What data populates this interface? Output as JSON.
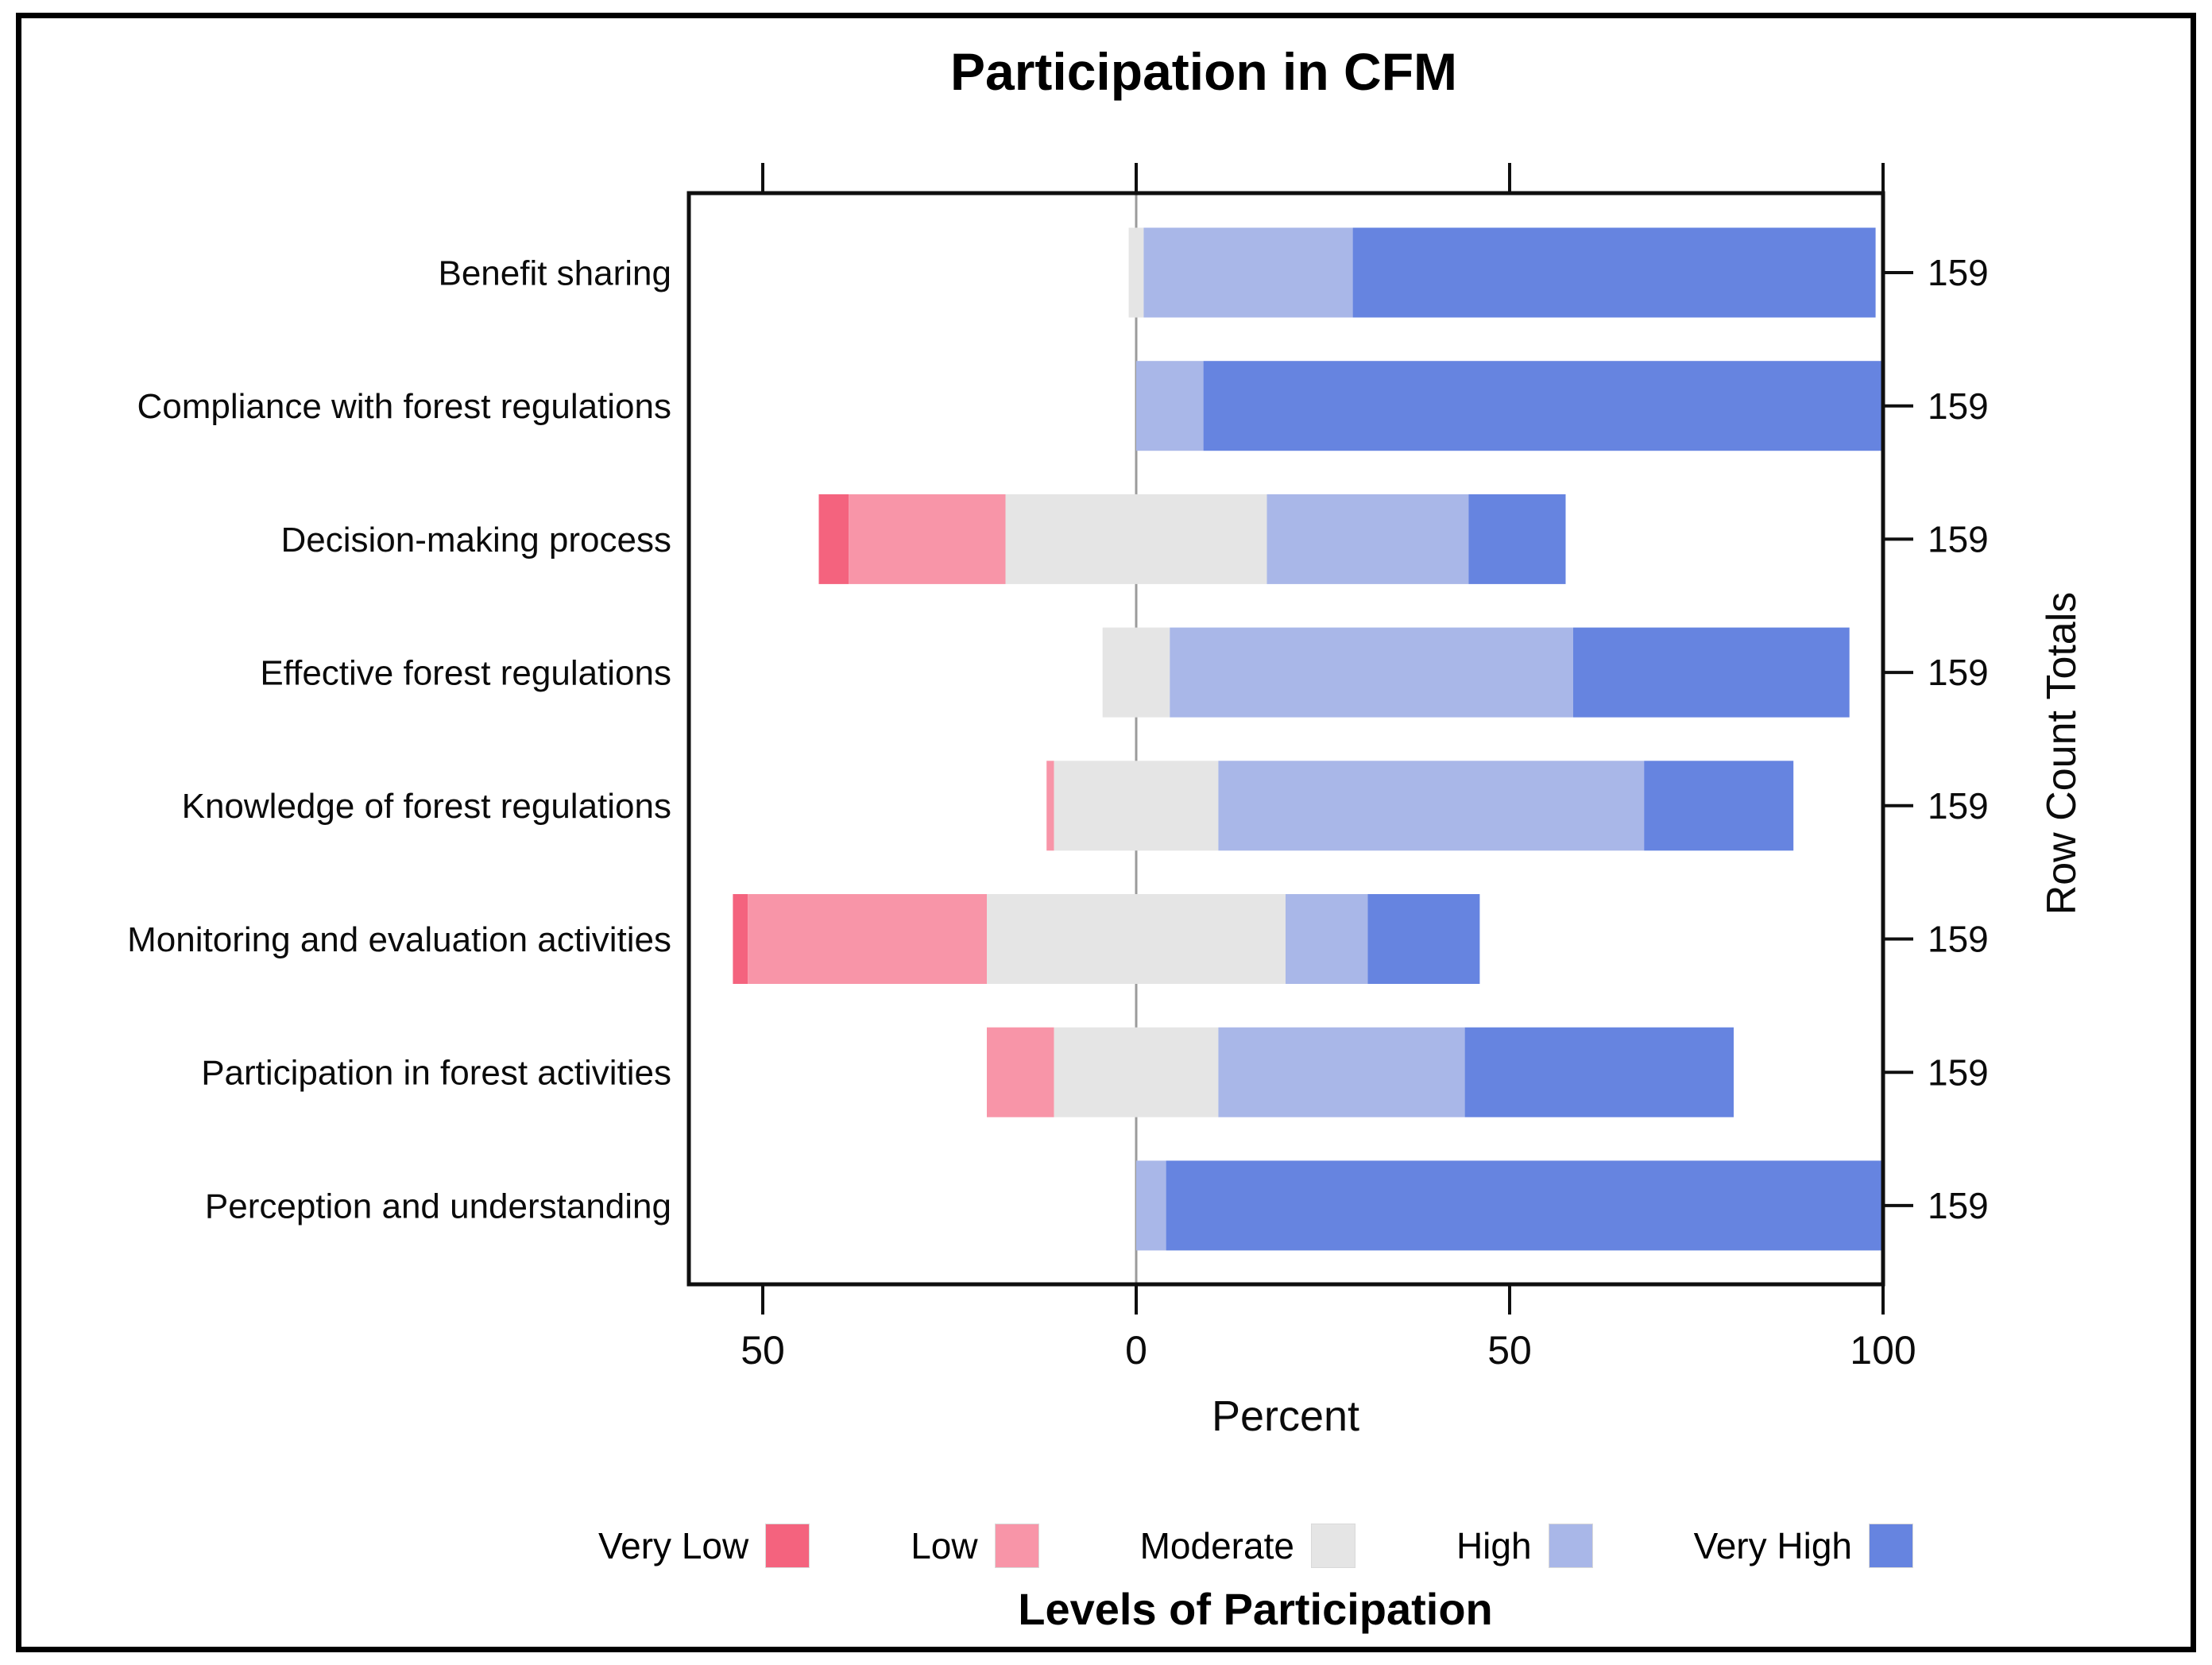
{
  "title": "Participation in CFM",
  "x_axis": {
    "label": "Percent",
    "ticks": [
      {
        "value": -50,
        "label": "50"
      },
      {
        "value": 0,
        "label": "0"
      },
      {
        "value": 50,
        "label": "50"
      },
      {
        "value": 100,
        "label": "100"
      }
    ]
  },
  "right_axis": {
    "label": "Row Count Totals"
  },
  "legend": {
    "title": "Levels of Participation",
    "items": [
      {
        "label": "Very Low",
        "color": "#F4637E"
      },
      {
        "label": "Low",
        "color": "#F895A8"
      },
      {
        "label": "Moderate",
        "color": "#E5E5E5"
      },
      {
        "label": "High",
        "color": "#A9B7E8"
      },
      {
        "label": "Very High",
        "color": "#6684E0"
      }
    ]
  },
  "colors": {
    "zero_line": "#9B9B9B",
    "frame": "#0f0f0f",
    "text": "#0b0b0b"
  },
  "chart_data": {
    "type": "bar",
    "subtype": "diverging_stacked_bar",
    "orientation": "horizontal",
    "title": "Participation in CFM",
    "xlabel": "Percent",
    "right_axis_label": "Row Count Totals",
    "legend_title": "Levels of Participation",
    "xlim": [
      -60,
      100
    ],
    "layout_note": "Moderate segment centered on zero; Very Low and Low extend left, High and Very High extend right",
    "categories": [
      "Benefit sharing",
      "Compliance with forest regulations",
      "Decision-making process",
      "Effective forest regulations",
      "Knowledge of forest regulations",
      "Monitoring and evaluation activities",
      "Participation in forest activities",
      "Perception and understanding"
    ],
    "series": [
      {
        "name": "Very Low",
        "values": [
          0,
          0,
          4,
          0,
          0,
          2,
          0,
          0
        ]
      },
      {
        "name": "Low",
        "values": [
          0,
          0,
          21,
          0,
          1,
          32,
          9,
          0
        ]
      },
      {
        "name": "Moderate",
        "values": [
          2,
          0,
          35,
          9,
          22,
          40,
          22,
          0
        ]
      },
      {
        "name": "High",
        "values": [
          28,
          9,
          27,
          54,
          57,
          11,
          33,
          4
        ]
      },
      {
        "name": "Very High",
        "values": [
          70,
          91,
          13,
          37,
          20,
          15,
          36,
          96
        ]
      }
    ],
    "row_totals": [
      159,
      159,
      159,
      159,
      159,
      159,
      159,
      159
    ]
  }
}
